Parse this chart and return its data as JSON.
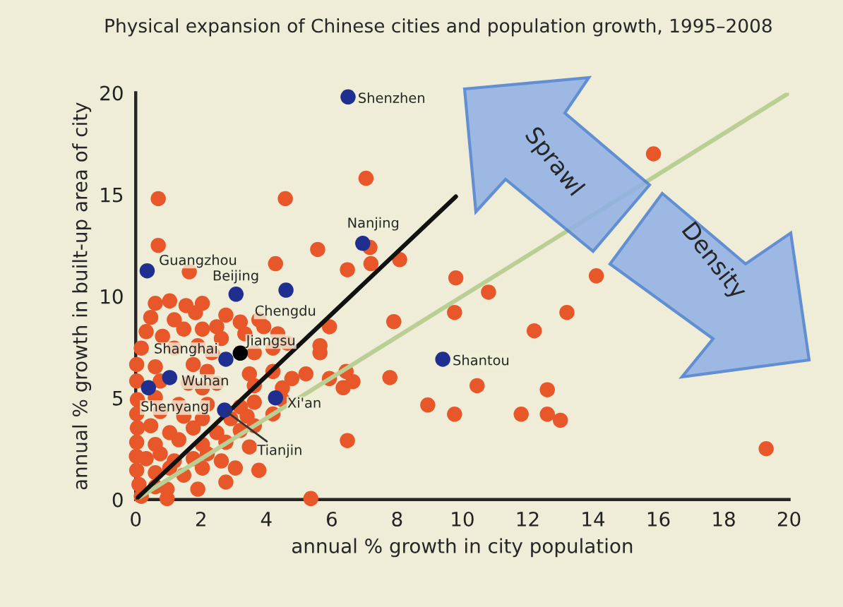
{
  "chart_data": {
    "type": "scatter",
    "title": "Physical expansion of Chinese cities and population growth, 1995–2008",
    "xlabel": "annual % growth in city population",
    "ylabel": "annual % growth in built-up area of city",
    "xlim": [
      0,
      20
    ],
    "ylim": [
      0,
      20
    ],
    "xticks": [
      0,
      2,
      4,
      6,
      8,
      10,
      12,
      14,
      16,
      18,
      20
    ],
    "yticks": [
      0,
      5,
      10,
      15,
      20
    ],
    "grid": false,
    "legend": false,
    "marker": "circle",
    "series": [
      {
        "color": "#e8572a",
        "x": [
          15.85,
          7.05,
          7.17,
          6.48,
          7.2,
          8.08,
          9.8,
          10.8,
          14.1,
          7.9,
          9.76,
          13.2,
          12.2,
          6.44,
          6.65,
          6.35,
          7.78,
          10.45,
          12.6,
          8.94,
          9.76,
          11.8,
          12.6,
          13.0,
          6.48,
          19.3,
          0.69,
          4.58,
          0.69,
          5.57,
          4.28,
          1.64,
          0.6,
          1.04,
          1.54,
          2.04,
          2.76,
          0.46,
          1.18,
          1.83,
          2.48,
          3.2,
          3.77,
          0.32,
          0.82,
          1.47,
          2.04,
          2.62,
          3.34,
          3.92,
          4.35,
          5.93,
          5.64,
          5.64,
          0.17,
          1.18,
          1.9,
          2.33,
          3.63,
          4.2,
          4.64,
          0.03,
          0.6,
          1.76,
          2.19,
          3.48,
          4.2,
          4.78,
          5.21,
          5.93,
          0.03,
          0.75,
          1.61,
          2.04,
          2.48,
          3.63,
          4.49,
          0.05,
          0.6,
          1.32,
          2.19,
          3.2,
          3.63,
          4.49,
          0.03,
          0.75,
          1.47,
          2.04,
          2.91,
          3.41,
          4.2,
          0.05,
          0.46,
          1.04,
          1.76,
          2.48,
          3.2,
          3.63,
          0.03,
          0.6,
          1.32,
          2.04,
          2.76,
          3.48,
          0.02,
          0.32,
          0.75,
          1.18,
          1.76,
          2.19,
          2.62,
          3.05,
          3.77,
          0.03,
          0.6,
          1.04,
          1.47,
          2.04,
          0.1,
          0.6,
          0.96,
          1.9,
          2.76,
          0.17,
          0.96,
          5.36
        ],
        "values": [
          17.0,
          15.8,
          12.4,
          11.3,
          11.6,
          11.8,
          10.9,
          10.2,
          11.0,
          8.75,
          9.2,
          9.2,
          8.3,
          6.3,
          5.8,
          5.5,
          6.0,
          5.6,
          5.4,
          4.65,
          4.2,
          4.2,
          4.2,
          3.9,
          2.9,
          2.5,
          14.8,
          14.8,
          12.5,
          12.3,
          11.6,
          11.2,
          9.65,
          9.77,
          9.54,
          9.65,
          9.07,
          8.96,
          8.84,
          9.19,
          8.5,
          8.73,
          8.84,
          8.26,
          8.03,
          8.38,
          8.38,
          7.92,
          8.15,
          8.5,
          8.15,
          8.5,
          7.57,
          7.22,
          7.45,
          7.45,
          7.57,
          7.22,
          7.22,
          7.45,
          7.69,
          6.64,
          6.53,
          6.64,
          6.3,
          6.18,
          6.3,
          5.95,
          6.18,
          5.95,
          5.83,
          5.83,
          5.72,
          5.49,
          5.72,
          5.6,
          5.49,
          4.91,
          5.02,
          4.68,
          4.68,
          4.56,
          4.79,
          4.91,
          4.21,
          4.33,
          4.1,
          3.98,
          3.98,
          4.1,
          4.21,
          3.52,
          3.63,
          3.29,
          3.52,
          3.29,
          3.4,
          3.63,
          2.82,
          2.71,
          2.94,
          2.71,
          2.82,
          2.59,
          2.13,
          2.01,
          2.25,
          1.9,
          2.01,
          2.25,
          1.9,
          1.55,
          1.44,
          1.44,
          1.32,
          1.55,
          1.2,
          1.55,
          0.74,
          0.63,
          0.51,
          0.51,
          0.86,
          0.16,
          0.05,
          0.05
        ]
      },
      {
        "type": "line",
        "marker": "none",
        "color": "#b9cf93",
        "x": [
          0,
          20
        ],
        "values": [
          0,
          20
        ]
      },
      {
        "type": "line",
        "marker": "none",
        "color": "#111111",
        "x": [
          0,
          9.8
        ],
        "values": [
          0,
          14.9
        ]
      },
      {
        "colors": [
          "#1f2f8f",
          "#1f2f8f",
          "#1f2f8f",
          "#1f2f8f",
          "#1f2f8f",
          "#1f2f8f",
          "#000000",
          "#1f2f8f",
          "#1f2f8f",
          "#1f2f8f",
          "#1f2f8f",
          "#1f2f8f"
        ],
        "x": [
          6.5,
          6.95,
          0.35,
          3.07,
          4.6,
          2.76,
          3.2,
          1.04,
          0.39,
          2.72,
          4.28,
          9.4
        ],
        "values": [
          19.8,
          12.6,
          11.25,
          10.1,
          10.3,
          6.9,
          7.2,
          6.0,
          5.5,
          4.4,
          5.0,
          6.9
        ]
      }
    ],
    "annotations": [
      {
        "text": "Shenzhen",
        "x": 6.5,
        "y": 19.8
      },
      {
        "text": "Nanjing",
        "x": 6.95,
        "y": 12.6
      },
      {
        "text": "Guangzhou",
        "x": 0.35,
        "y": 11.25
      },
      {
        "text": "Beijing",
        "x": 3.07,
        "y": 10.1
      },
      {
        "text": "Chengdu",
        "x": 4.6,
        "y": 10.3
      },
      {
        "text": "Shanghai",
        "x": 2.76,
        "y": 6.9
      },
      {
        "text": "Jiangsu",
        "x": 3.2,
        "y": 7.2
      },
      {
        "text": "Wuhan",
        "x": 1.04,
        "y": 6.0
      },
      {
        "text": "Shenyang",
        "x": 0.39,
        "y": 5.5
      },
      {
        "text": "Tianjin",
        "x": 2.72,
        "y": 4.4
      },
      {
        "text": "Xi'an",
        "x": 4.28,
        "y": 5.0
      },
      {
        "text": "Shantou",
        "x": 9.4,
        "y": 6.9
      },
      "Sprawl",
      "Density"
    ]
  }
}
